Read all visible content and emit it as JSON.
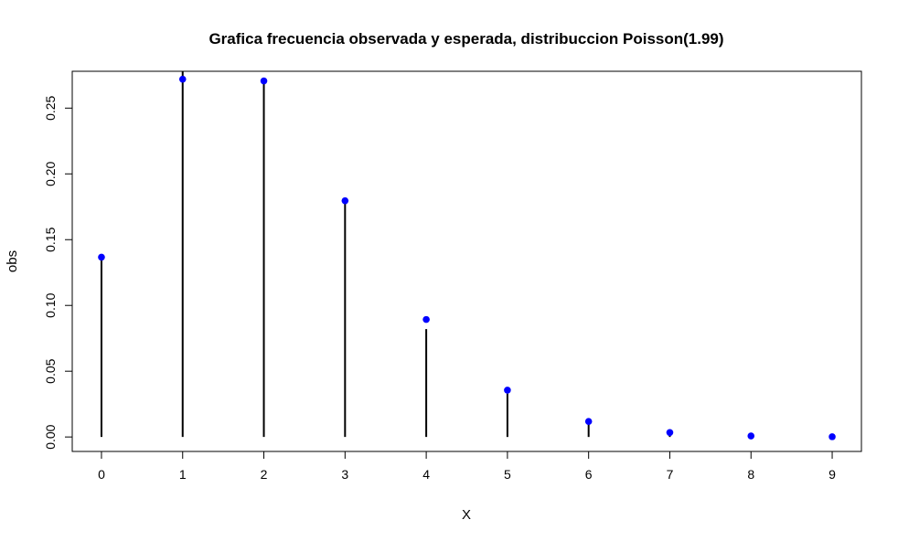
{
  "chart_data": {
    "type": "scatter",
    "title": "Grafica frecuencia observada y esperada, distribuccion Poisson(1.99)",
    "xlabel": "X",
    "ylabel": "obs",
    "x": [
      0,
      1,
      2,
      3,
      4,
      5,
      6,
      7,
      8,
      9
    ],
    "x_tick_labels": [
      "0",
      "1",
      "2",
      "3",
      "4",
      "5",
      "6",
      "7",
      "8",
      "9"
    ],
    "y_ticks": [
      0.0,
      0.05,
      0.1,
      0.15,
      0.2,
      0.25
    ],
    "y_tick_labels": [
      "0.00",
      "0.05",
      "0.10",
      "0.15",
      "0.20",
      "0.25"
    ],
    "xlim": [
      -0.36,
      9.36
    ],
    "ylim": [
      -0.011,
      0.278
    ],
    "grid": false,
    "series": [
      {
        "style": "vertical-lines",
        "color": "#000000",
        "values": [
          0.137,
          0.278,
          0.269,
          0.178,
          0.082,
          0.033,
          0.01,
          0.002,
          0.0005,
          0.0001
        ]
      },
      {
        "style": "points",
        "color": "#0000ff",
        "values": [
          0.1367,
          0.272,
          0.2707,
          0.1796,
          0.0893,
          0.0356,
          0.0118,
          0.0034,
          0.0008,
          0.0002
        ]
      }
    ]
  }
}
